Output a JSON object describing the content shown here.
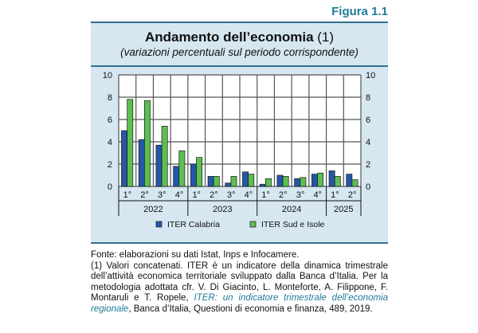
{
  "figure_label": "Figura 1.1",
  "chart_data": {
    "type": "bar",
    "title": "Andamento dell’economia",
    "title_note": "(1)",
    "subtitle": "(variazioni percentuali sul periodo corrispondente)",
    "categories": [
      "1°",
      "2°",
      "3°",
      "4°",
      "1°",
      "2°",
      "3°",
      "4°",
      "1°",
      "2°",
      "3°",
      "4°",
      "1°",
      "2°"
    ],
    "groups": [
      {
        "label": "2022",
        "count": 4
      },
      {
        "label": "2023",
        "count": 4
      },
      {
        "label": "2024",
        "count": 4
      },
      {
        "label": "2025",
        "count": 2
      }
    ],
    "series": [
      {
        "name": "ITER Calabria",
        "color": "#2457a8",
        "values": [
          5.0,
          4.2,
          3.7,
          1.8,
          2.0,
          0.9,
          0.3,
          1.3,
          0.2,
          1.0,
          0.7,
          1.1,
          1.4,
          1.1
        ]
      },
      {
        "name": "ITER Sud e Isole",
        "color": "#5cbf4f",
        "values": [
          7.8,
          7.7,
          5.4,
          3.2,
          2.6,
          0.9,
          0.9,
          1.1,
          0.7,
          0.9,
          0.8,
          1.2,
          0.9,
          0.6
        ]
      }
    ],
    "ylim": [
      0,
      10
    ],
    "yticks": [
      "0",
      "2",
      "4",
      "6",
      "8",
      "10"
    ],
    "grid": true,
    "legend": "bottom",
    "secondary_y_axis": true
  },
  "notes": {
    "source": "Fonte: elaborazioni su dati Istat, Inps e Infocamere.",
    "note1_a": "(1) Valori concatenati. ITER è un indicatore della dinamica trimestrale dell’attività economica territoriale sviluppato dalla Banca d’Italia. Per la metodologia adottata cfr. V. Di Giacinto, L. Monteforte, A. Filippone, F. Montaruli e T. Ropele, ",
    "note1_link": "ITER: un indicatore trimestrale dell’economia regionale",
    "note1_b": ", Banca d’Italia, Questioni di economia e finanza, 489, 2019."
  }
}
